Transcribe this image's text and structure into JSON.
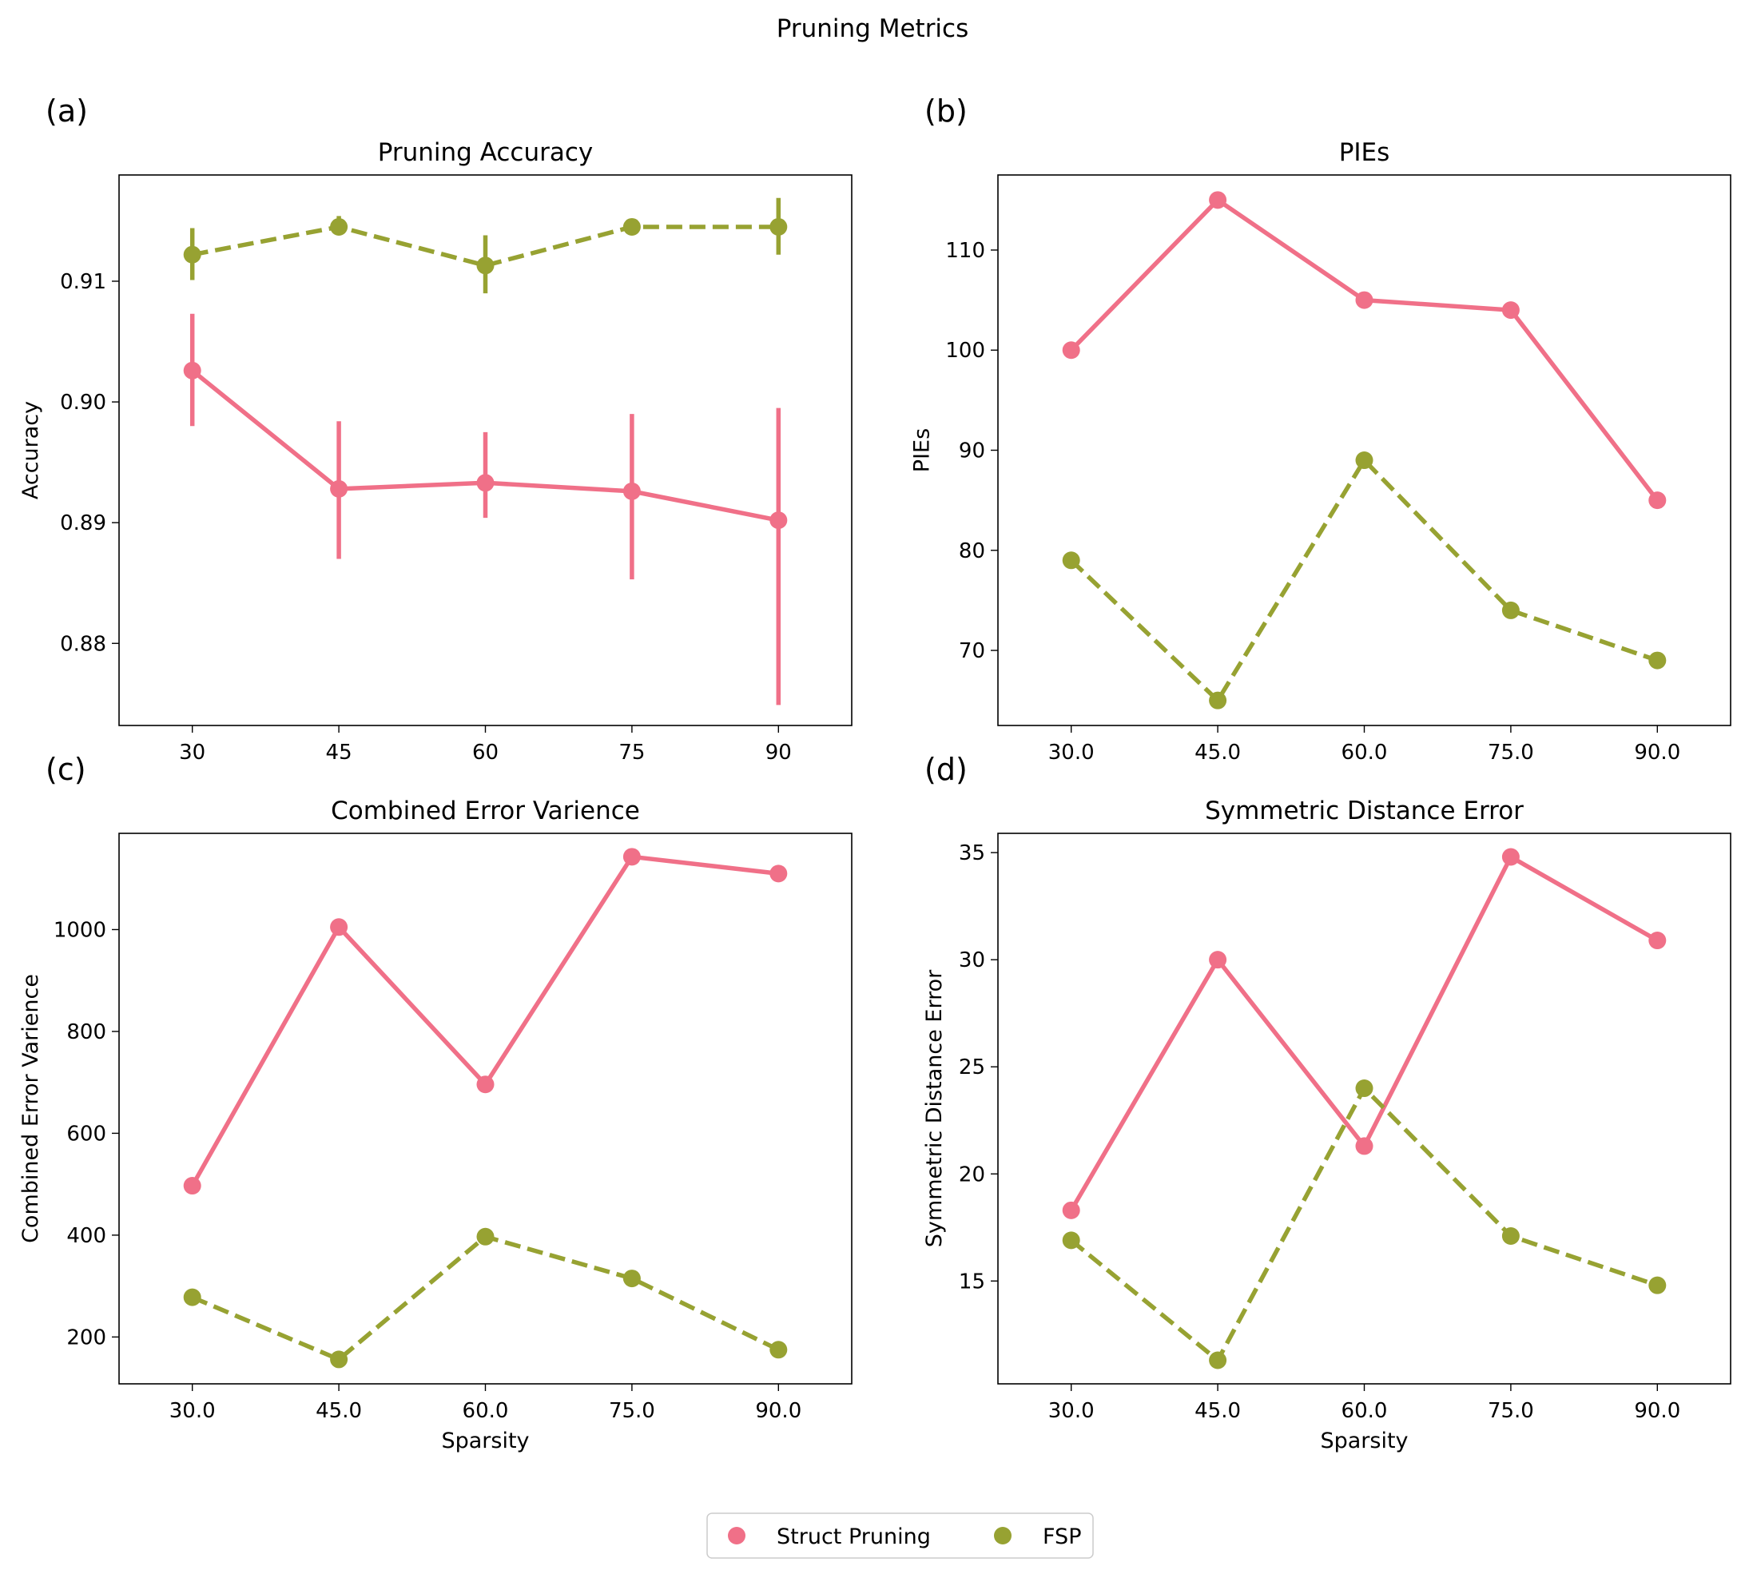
{
  "figure": {
    "suptitle": "Pruning Metrics"
  },
  "legend": {
    "entries": [
      {
        "label": "Struct Pruning",
        "color": "#f07088"
      },
      {
        "label": "FSP",
        "color": "#97a232"
      }
    ]
  },
  "chart_data": [
    {
      "panel": "(a)",
      "type": "line",
      "title": "Pruning Accuracy",
      "xlabel": "",
      "ylabel": "Accuracy",
      "categories": [
        "30",
        "45",
        "60",
        "75",
        "90"
      ],
      "ylim": [
        0.8732,
        0.9188
      ],
      "yticks": [
        0.88,
        0.89,
        0.9,
        0.91
      ],
      "ytick_labels": [
        "0.88",
        "0.89",
        "0.90",
        "0.91"
      ],
      "grid": false,
      "series": [
        {
          "name": "Struct Pruning",
          "color": "#f07088",
          "dash": "solid",
          "values": [
            0.9026,
            0.8928,
            0.8933,
            0.8926,
            0.8902
          ],
          "err_low": [
            0.898,
            0.887,
            0.8904,
            0.8853,
            0.8749
          ],
          "err_high": [
            0.9073,
            0.8984,
            0.8975,
            0.899,
            0.8995
          ]
        },
        {
          "name": "FSP",
          "color": "#97a232",
          "dash": "dashed",
          "values": [
            0.9122,
            0.9145,
            0.9113,
            0.9145,
            0.9145
          ],
          "err_low": [
            0.9101,
            0.914,
            0.909,
            0.9143,
            0.9122
          ],
          "err_high": [
            0.9144,
            0.9154,
            0.9138,
            0.9147,
            0.9169
          ]
        }
      ]
    },
    {
      "panel": "(b)",
      "type": "line",
      "title": "PIEs",
      "xlabel": "",
      "ylabel": "PIEs",
      "categories": [
        "30.0",
        "45.0",
        "60.0",
        "75.0",
        "90.0"
      ],
      "ylim": [
        62.5,
        117.5
      ],
      "yticks": [
        70,
        80,
        90,
        100,
        110
      ],
      "ytick_labels": [
        "70",
        "80",
        "90",
        "100",
        "110"
      ],
      "grid": false,
      "series": [
        {
          "name": "Struct Pruning",
          "color": "#f07088",
          "dash": "solid",
          "values": [
            100,
            115,
            105,
            104,
            85
          ]
        },
        {
          "name": "FSP",
          "color": "#97a232",
          "dash": "dashed",
          "values": [
            79,
            65,
            89,
            74,
            69
          ]
        }
      ]
    },
    {
      "panel": "(c)",
      "type": "line",
      "title": "Combined Error Varience",
      "xlabel": "Sparsity",
      "ylabel": "Combined Error Varience",
      "categories": [
        "30.0",
        "45.0",
        "60.0",
        "75.0",
        "90.0"
      ],
      "ylim": [
        108,
        1189
      ],
      "yticks": [
        200,
        400,
        600,
        800,
        1000
      ],
      "ytick_labels": [
        "200",
        "400",
        "600",
        "800",
        "1000"
      ],
      "grid": false,
      "series": [
        {
          "name": "Struct Pruning",
          "color": "#f07088",
          "dash": "solid",
          "values": [
            497,
            1005,
            696,
            1143,
            1110
          ]
        },
        {
          "name": "FSP",
          "color": "#97a232",
          "dash": "dashed",
          "values": [
            278,
            156,
            397,
            315,
            175
          ]
        }
      ]
    },
    {
      "panel": "(d)",
      "type": "line",
      "title": "Symmetric Distance Error",
      "xlabel": "Sparsity",
      "ylabel": "Symmetric Distance Error",
      "categories": [
        "30.0",
        "45.0",
        "60.0",
        "75.0",
        "90.0"
      ],
      "ylim": [
        10.2,
        35.9
      ],
      "yticks": [
        15,
        20,
        25,
        30,
        35
      ],
      "ytick_labels": [
        "15",
        "20",
        "25",
        "30",
        "35"
      ],
      "grid": false,
      "series": [
        {
          "name": "Struct Pruning",
          "color": "#f07088",
          "dash": "solid",
          "values": [
            18.3,
            30.0,
            21.3,
            34.8,
            30.9
          ]
        },
        {
          "name": "FSP",
          "color": "#97a232",
          "dash": "dashed",
          "values": [
            16.9,
            11.3,
            24.0,
            17.1,
            14.8
          ]
        }
      ]
    }
  ]
}
